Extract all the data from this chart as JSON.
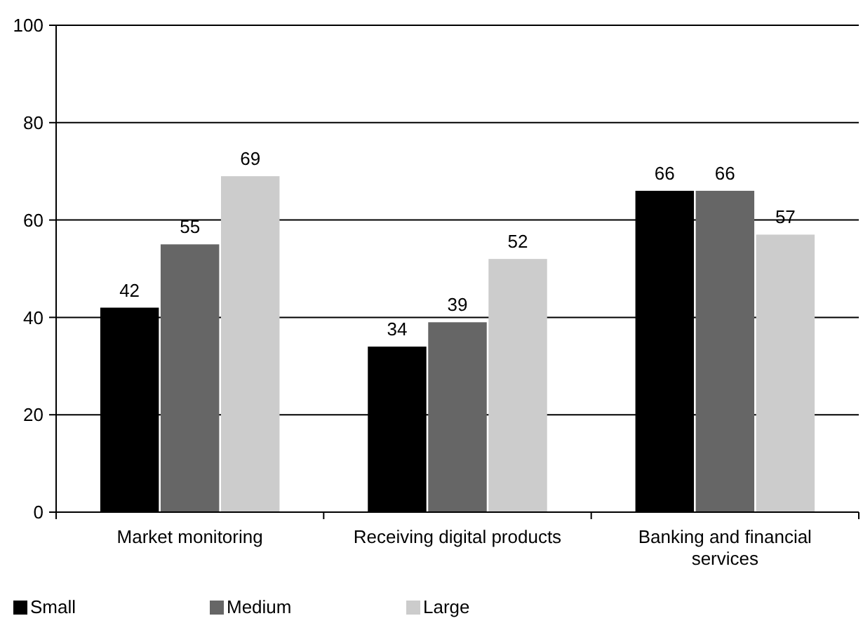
{
  "chart_data": {
    "type": "bar",
    "categories": [
      "Market monitoring",
      "Receiving digital products",
      "Banking and financial services"
    ],
    "series": [
      {
        "name": "Small",
        "color": "#000000",
        "values": [
          42,
          34,
          66
        ]
      },
      {
        "name": "Medium",
        "color": "#666666",
        "values": [
          55,
          39,
          66
        ]
      },
      {
        "name": "Large",
        "color": "#cccccc",
        "values": [
          69,
          52,
          57
        ]
      }
    ],
    "ylim": [
      0,
      100
    ],
    "yticks": [
      0,
      20,
      40,
      60,
      80,
      100
    ],
    "grid": "y",
    "legend": "bottom",
    "data_labels": true
  }
}
